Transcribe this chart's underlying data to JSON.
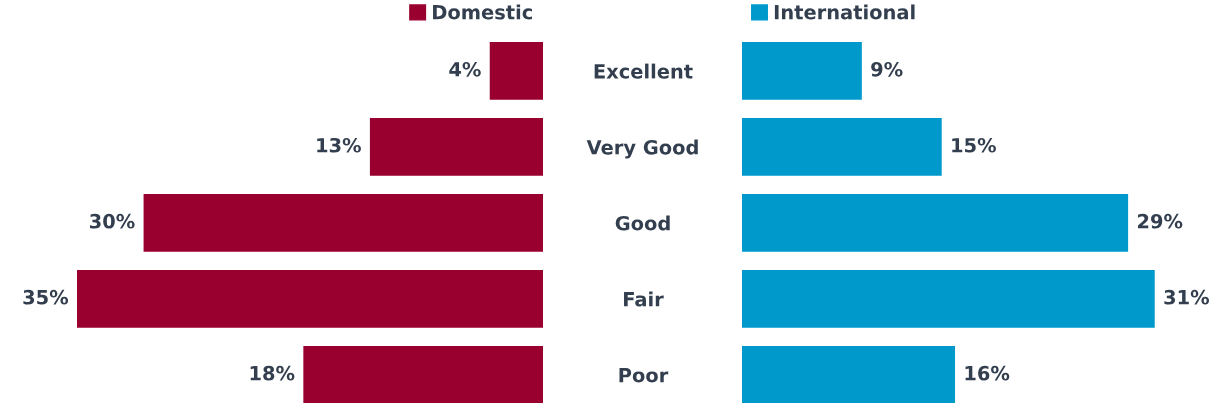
{
  "chart_data": [
    {
      "type": "bar",
      "orientation": "horizontal",
      "categories": [
        "Excellent",
        "Very Good",
        "Good",
        "Fair",
        "Poor"
      ],
      "tick_labels": "y",
      "legend": "top right",
      "series": [
        {
          "name": "Domestic",
          "color": "#990030",
          "values": [
            4,
            13,
            30,
            35,
            18
          ],
          "value_labels": [
            "4%",
            "13%",
            "30%",
            "35%",
            "18%"
          ]
        }
      ]
    },
    {
      "type": "bar",
      "orientation": "horizontal",
      "categories": [
        null,
        null,
        null,
        null,
        null
      ],
      "tick_labels": false,
      "legend": "top left",
      "series": [
        {
          "name": "International",
          "color": "#0099cc",
          "values": [
            9,
            15,
            29,
            31,
            16
          ],
          "value_labels": [
            "9%",
            "15%",
            "29%",
            "31%",
            "16%"
          ]
        }
      ]
    }
  ]
}
